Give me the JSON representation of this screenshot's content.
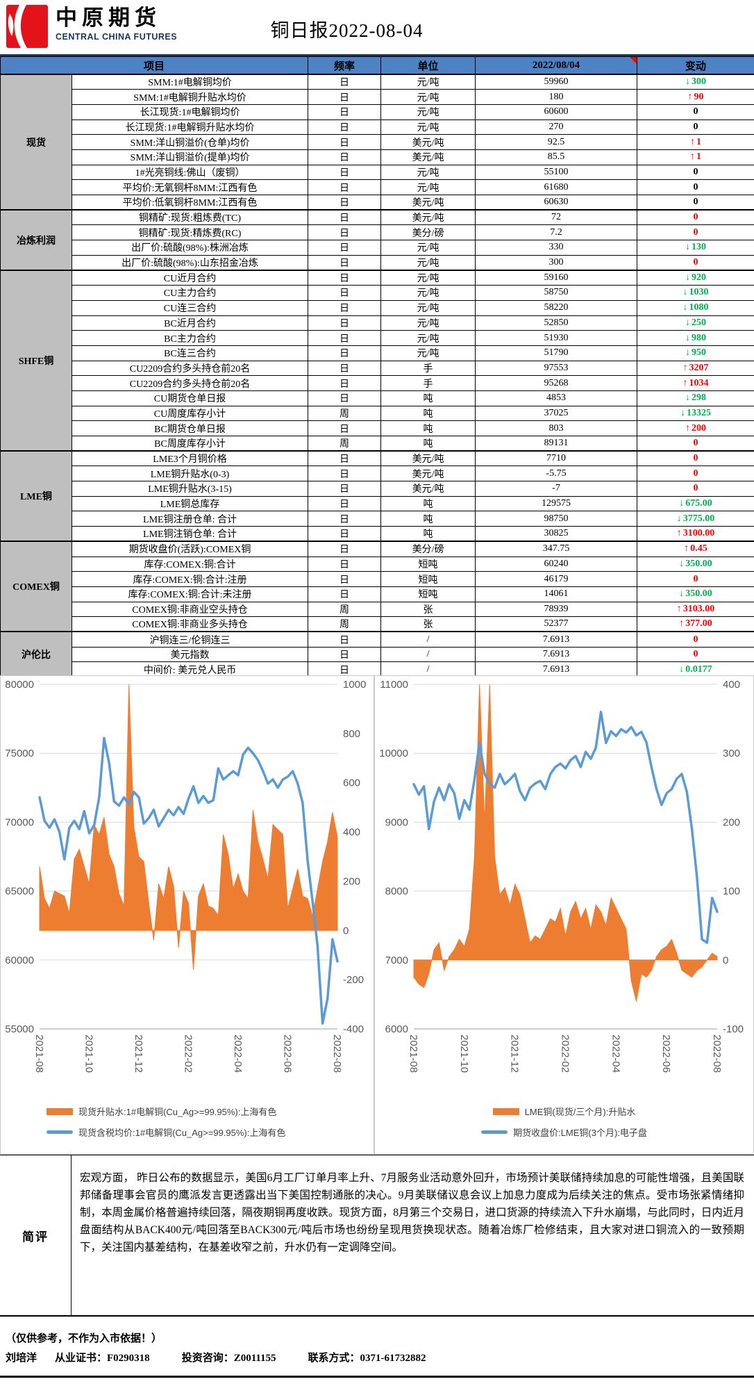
{
  "header": {
    "logo_cn": "中原期货",
    "logo_en": "CENTRAL CHINA FUTURES",
    "title": "铜日报2022-08-04"
  },
  "table": {
    "columns": [
      "项目",
      "频率",
      "单位",
      "2022/08/04",
      "变动"
    ],
    "groups": [
      {
        "name": "现货",
        "rows": [
          {
            "item": "SMM:1#电解铜均价",
            "freq": "日",
            "unit": "元/吨",
            "value": "59960",
            "change": "300",
            "dir": "down",
            "color": "green"
          },
          {
            "item": "SMM:1#电解铜升贴水均价",
            "freq": "日",
            "unit": "元/吨",
            "value": "180",
            "change": "90",
            "dir": "up",
            "color": "red"
          },
          {
            "item": "长江现货:1#电解铜均价",
            "freq": "日",
            "unit": "元/吨",
            "value": "60600",
            "change": "0",
            "dir": "flat",
            "color": "black"
          },
          {
            "item": "长江现货:1#电解铜升贴水均价",
            "freq": "日",
            "unit": "元/吨",
            "value": "270",
            "change": "0",
            "dir": "flat",
            "color": "black"
          },
          {
            "item": "SMM:洋山铜溢价(仓单)均价",
            "freq": "日",
            "unit": "美元/吨",
            "value": "92.5",
            "change": "1",
            "dir": "up",
            "color": "red"
          },
          {
            "item": "SMM:洋山铜溢价(提单)均价",
            "freq": "日",
            "unit": "美元/吨",
            "value": "85.5",
            "change": "1",
            "dir": "up",
            "color": "red"
          },
          {
            "item": "1#光亮铜线:佛山（废铜）",
            "freq": "日",
            "unit": "元/吨",
            "value": "55100",
            "change": "0",
            "dir": "flat",
            "color": "black"
          },
          {
            "item": "平均价:无氧铜杆8MM:江西有色",
            "freq": "日",
            "unit": "元/吨",
            "value": "61680",
            "change": "0",
            "dir": "flat",
            "color": "black"
          },
          {
            "item": "平均价:低氧铜杆8MM:江西有色",
            "freq": "日",
            "unit": "美元/吨",
            "value": "60630",
            "change": "0",
            "dir": "flat",
            "color": "black"
          }
        ]
      },
      {
        "name": "冶炼利润",
        "rows": [
          {
            "item": "铜精矿:现货:粗炼费(TC)",
            "freq": "日",
            "unit": "美元/吨",
            "value": "72",
            "change": "0",
            "dir": "flat",
            "color": "red"
          },
          {
            "item": "铜精矿:现货:精炼费(RC)",
            "freq": "日",
            "unit": "美分/磅",
            "value": "7.2",
            "change": "0",
            "dir": "flat",
            "color": "red"
          },
          {
            "item": "出厂价:硫酸(98%):株洲冶炼",
            "freq": "日",
            "unit": "元/吨",
            "value": "330",
            "change": "130",
            "dir": "down",
            "color": "green"
          },
          {
            "item": "出厂价:硫酸(98%):山东招金冶炼",
            "freq": "日",
            "unit": "元/吨",
            "value": "300",
            "change": "0",
            "dir": "flat",
            "color": "red"
          }
        ]
      },
      {
        "name": "SHFE铜",
        "rows": [
          {
            "item": "CU近月合约",
            "freq": "日",
            "unit": "元/吨",
            "value": "59160",
            "change": "920",
            "dir": "down",
            "color": "green"
          },
          {
            "item": "CU主力合约",
            "freq": "日",
            "unit": "元/吨",
            "value": "58750",
            "change": "1030",
            "dir": "down",
            "color": "green"
          },
          {
            "item": "CU连三合约",
            "freq": "日",
            "unit": "元/吨",
            "value": "58220",
            "change": "1080",
            "dir": "down",
            "color": "green"
          },
          {
            "item": "BC近月合约",
            "freq": "日",
            "unit": "元/吨",
            "value": "52850",
            "change": "250",
            "dir": "down",
            "color": "green"
          },
          {
            "item": "BC主力合约",
            "freq": "日",
            "unit": "元/吨",
            "value": "51930",
            "change": "980",
            "dir": "down",
            "color": "green"
          },
          {
            "item": "BC连三合约",
            "freq": "日",
            "unit": "元/吨",
            "value": "51790",
            "change": "950",
            "dir": "down",
            "color": "green"
          },
          {
            "item": "CU2209合约多头持仓前20名",
            "freq": "日",
            "unit": "手",
            "value": "97553",
            "change": "3207",
            "dir": "up",
            "color": "red"
          },
          {
            "item": "CU2209合约多头持仓前20名",
            "freq": "日",
            "unit": "手",
            "value": "95268",
            "change": "1034",
            "dir": "up",
            "color": "red"
          },
          {
            "item": "CU期货仓单日报",
            "freq": "日",
            "unit": "吨",
            "value": "4853",
            "change": "298",
            "dir": "down",
            "color": "green"
          },
          {
            "item": "CU周度库存小计",
            "freq": "周",
            "unit": "吨",
            "value": "37025",
            "change": "13325",
            "dir": "down",
            "color": "green"
          },
          {
            "item": "BC期货仓单日报",
            "freq": "日",
            "unit": "吨",
            "value": "803",
            "change": "200",
            "dir": "up",
            "color": "red"
          },
          {
            "item": "BC周度库存小计",
            "freq": "周",
            "unit": "吨",
            "value": "89131",
            "change": "0",
            "dir": "flat",
            "color": "red"
          }
        ]
      },
      {
        "name": "LME铜",
        "rows": [
          {
            "item": "LME3个月铜价格",
            "freq": "日",
            "unit": "美元/吨",
            "value": "7710",
            "change": "0",
            "dir": "flat",
            "color": "red"
          },
          {
            "item": "LME铜升贴水(0-3)",
            "freq": "日",
            "unit": "美元/吨",
            "value": "-5.75",
            "change": "0",
            "dir": "flat",
            "color": "red"
          },
          {
            "item": "LME铜升贴水(3-15)",
            "freq": "日",
            "unit": "美元/吨",
            "value": "-7",
            "change": "0",
            "dir": "flat",
            "color": "red"
          },
          {
            "item": "LME铜总库存",
            "freq": "日",
            "unit": "吨",
            "value": "129575",
            "change": "675.00",
            "dir": "down",
            "color": "green"
          },
          {
            "item": "LME铜注册仓单: 合计",
            "freq": "日",
            "unit": "吨",
            "value": "98750",
            "change": "3775.00",
            "dir": "down",
            "color": "green"
          },
          {
            "item": "LME铜注销仓单: 合计",
            "freq": "日",
            "unit": "吨",
            "value": "30825",
            "change": "3100.00",
            "dir": "up",
            "color": "red"
          }
        ]
      },
      {
        "name": "COMEX铜",
        "rows": [
          {
            "item": "期货收盘价(活跃):COMEX铜",
            "freq": "日",
            "unit": "美分/磅",
            "value": "347.75",
            "change": "0.45",
            "dir": "up",
            "color": "red"
          },
          {
            "item": "库存:COMEX:铜:合计",
            "freq": "日",
            "unit": "短吨",
            "value": "60240",
            "change": "350.00",
            "dir": "down",
            "color": "green"
          },
          {
            "item": "库存:COMEX:铜:合计:注册",
            "freq": "日",
            "unit": "短吨",
            "value": "46179",
            "change": "0",
            "dir": "flat",
            "color": "red"
          },
          {
            "item": "库存:COMEX:铜:合计:未注册",
            "freq": "日",
            "unit": "短吨",
            "value": "14061",
            "change": "350.00",
            "dir": "down",
            "color": "green"
          },
          {
            "item": "COMEX铜:非商业空头持仓",
            "freq": "周",
            "unit": "张",
            "value": "78939",
            "change": "3103.00",
            "dir": "up",
            "color": "red"
          },
          {
            "item": "COMEX铜:非商业多头持仓",
            "freq": "周",
            "unit": "张",
            "value": "52377",
            "change": "377.00",
            "dir": "up",
            "color": "red"
          }
        ]
      },
      {
        "name": "沪伦比",
        "rows": [
          {
            "item": "沪铜连三/伦铜连三",
            "freq": "日",
            "unit": "/",
            "value": "7.6913",
            "change": "0",
            "dir": "flat",
            "color": "red"
          },
          {
            "item": "美元指数",
            "freq": "日",
            "unit": "/",
            "value": "7.6913",
            "change": "0",
            "dir": "flat",
            "color": "red"
          },
          {
            "item": "中间价: 美元兑人民币",
            "freq": "日",
            "unit": "/",
            "value": "7.6913",
            "change": "0.0177",
            "dir": "down",
            "color": "green"
          }
        ]
      }
    ]
  },
  "chart_data": [
    {
      "type": "area+line",
      "x_labels": [
        "2021-08",
        "2021-10",
        "2021-12",
        "2022-02",
        "2022-04",
        "2022-06",
        "2022-08"
      ],
      "left_axis": {
        "min": 55000,
        "max": 80000,
        "ticks": [
          80000,
          75000,
          70000,
          65000,
          60000,
          55000
        ]
      },
      "right_axis": {
        "min": -400,
        "max": 1000,
        "ticks": [
          1000,
          800,
          600,
          400,
          200,
          0,
          -200,
          -400
        ]
      },
      "legend_align": "left",
      "series": [
        {
          "name": "现货升贴水:1#电解铜(Cu_Ag>=99.95%):上海有色",
          "type": "area",
          "axis": "right",
          "color": "#ED7D31",
          "values": [
            260,
            130,
            90,
            160,
            150,
            140,
            70,
            290,
            330,
            260,
            190,
            430,
            390,
            460,
            310,
            260,
            150,
            100,
            1050,
            420,
            300,
            280,
            110,
            -40,
            190,
            130,
            260,
            180,
            -70,
            160,
            110,
            -160,
            140,
            190,
            100,
            90,
            60,
            390,
            310,
            170,
            230,
            160,
            130,
            490,
            360,
            290,
            210,
            430,
            410,
            390,
            90,
            170,
            250,
            140,
            130,
            60,
            170,
            280,
            360,
            480,
            380
          ]
        },
        {
          "name": "现货含税均价:1#电解铜(Cu_Ag>=99.95%):上海有色",
          "type": "line",
          "axis": "left",
          "color": "#5B9BD5",
          "values": [
            71800,
            70100,
            69600,
            70200,
            69300,
            67300,
            69600,
            70100,
            69500,
            70800,
            69200,
            69800,
            71800,
            76100,
            74300,
            71500,
            71200,
            71800,
            71300,
            72200,
            71800,
            69900,
            70300,
            70900,
            69700,
            70300,
            70900,
            70500,
            71100,
            70600,
            71700,
            72600,
            71400,
            71900,
            71400,
            71600,
            73900,
            73100,
            73400,
            73700,
            73400,
            74900,
            75400,
            75000,
            74500,
            73700,
            72800,
            73100,
            72500,
            73100,
            73300,
            73700,
            72800,
            71400,
            67200,
            64200,
            61000,
            55400,
            57200,
            61500,
            59900
          ]
        }
      ]
    },
    {
      "type": "area+line",
      "x_labels": [
        "2021-08",
        "2021-10",
        "2021-12",
        "2022-02",
        "2022-04",
        "2022-06",
        "2022-08"
      ],
      "left_axis": {
        "min": 6000,
        "max": 11000,
        "ticks": [
          11000,
          10000,
          9000,
          8000,
          7000,
          6000
        ]
      },
      "right_axis": {
        "min": -100,
        "max": 400,
        "ticks": [
          400,
          300,
          200,
          100,
          0,
          -100
        ]
      },
      "legend_align": "center",
      "series": [
        {
          "name": "LME铜(现货/三个月):升贴水",
          "type": "area",
          "axis": "right",
          "color": "#ED7D31",
          "values": [
            -25,
            -35,
            -40,
            -20,
            15,
            25,
            -15,
            5,
            15,
            30,
            20,
            45,
            150,
            430,
            200,
            400,
            150,
            95,
            105,
            80,
            110,
            95,
            60,
            25,
            35,
            30,
            45,
            60,
            55,
            75,
            35,
            70,
            85,
            60,
            75,
            45,
            80,
            70,
            50,
            90,
            75,
            60,
            45,
            -30,
            -60,
            -20,
            -25,
            -15,
            5,
            15,
            20,
            30,
            10,
            -15,
            -20,
            -25,
            -15,
            -10,
            0,
            10,
            5
          ]
        },
        {
          "name": "期货收盘价:LME铜(3个月):电子盘",
          "type": "line",
          "axis": "left",
          "color": "#5B9BD5",
          "values": [
            9550,
            9400,
            9520,
            8900,
            9300,
            9500,
            9320,
            9550,
            9420,
            9050,
            9320,
            9180,
            9620,
            10150,
            9700,
            9560,
            9500,
            9700,
            9550,
            9620,
            9700,
            9450,
            9320,
            9500,
            9560,
            9600,
            9480,
            9700,
            9800,
            9850,
            9780,
            9900,
            9960,
            9800,
            10020,
            9920,
            10080,
            10600,
            10150,
            10320,
            10250,
            10350,
            10300,
            10380,
            10260,
            10310,
            10160,
            9800,
            9480,
            9250,
            9420,
            9480,
            9630,
            9700,
            9440,
            8900,
            8200,
            7300,
            7250,
            7900,
            7700
          ]
        }
      ]
    }
  ],
  "comment": {
    "label": "简评",
    "text": "宏观方面， 昨日公布的数据显示，美国6月工厂订单月率上升、7月服务业活动意外回升，市场预计美联储持续加息的可能性增强，且美国联邦储备理事会官员的鹰派发言更透露出当下美国控制通胀的决心。9月美联储议息会议上加息力度成为后续关注的焦点。受市场张紧情绪抑制，本周金属价格普遍持续回落，隔夜期铜再度收跌。现货方面，8月第三个交易日，进口货源的持续流入下升水崩塌，与此同时，日内近月盘面结构从BACK400元/吨回落至BACK300元/吨后市场也纷纷呈现甩货换现状态。随着冶炼厂检修结束，且大家对进口铜流入的一致预期下，关注国内基差结构，在基差收窄之前，升水仍有一定调降空间。"
  },
  "footer": {
    "disclaimer": "（仅供参考，不作为入市依据！）",
    "analyst": "刘培洋",
    "cert": "从业证书：F0290318",
    "advisory": "投资咨询：Z0011155",
    "contact": "联系方式：0371-61732882"
  }
}
